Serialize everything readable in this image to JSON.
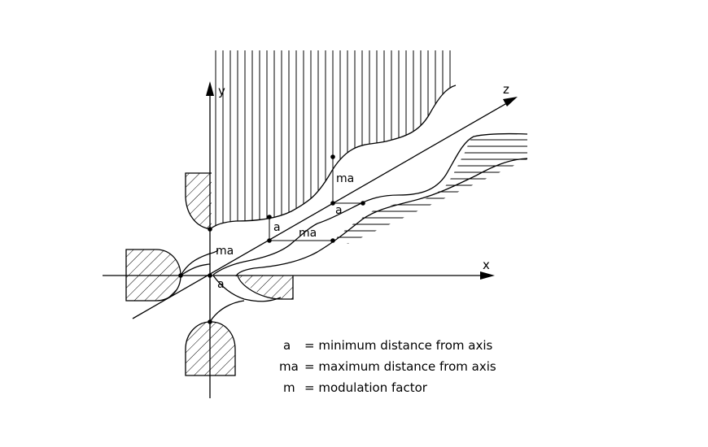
{
  "axes": {
    "x_label": "x",
    "y_label": "y",
    "z_label": "z"
  },
  "annotations": {
    "ma_front": "ma",
    "a_front": "a",
    "a_mid": "a",
    "ma_mid": "ma",
    "ma_back": "ma",
    "a_back": "a"
  },
  "legend": [
    {
      "symbol": "a",
      "text": "=  minimum distance from axis"
    },
    {
      "symbol": "ma",
      "text": "=  maximum distance from axis"
    },
    {
      "symbol": "m",
      "text": "=  modulation factor"
    }
  ]
}
